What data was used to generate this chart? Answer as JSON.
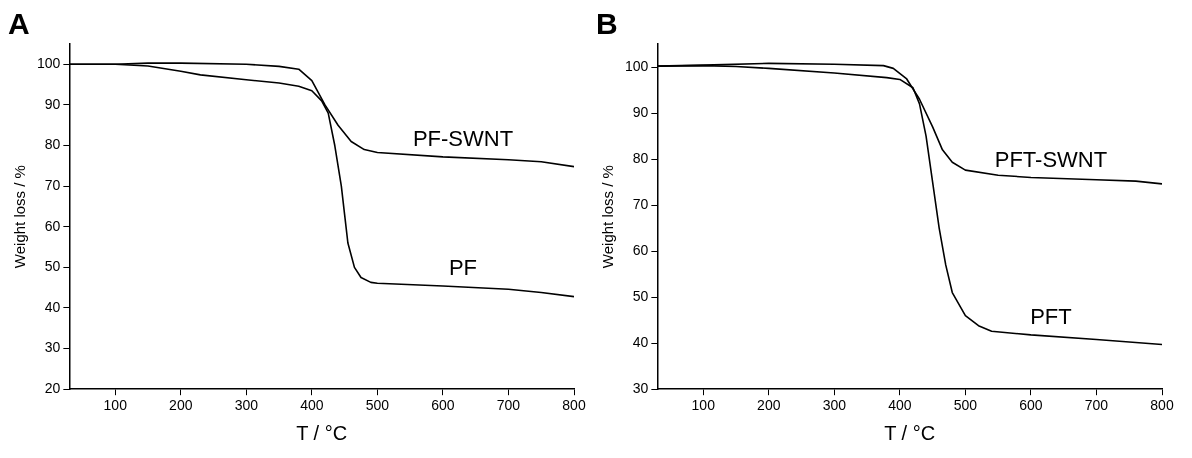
{
  "chart_data": [
    {
      "type": "line",
      "title": "A",
      "xlabel": "T / °C",
      "ylabel": "Weight loss / %",
      "xlim": [
        30,
        800
      ],
      "ylim": [
        20,
        105
      ],
      "xticks": [
        100,
        200,
        300,
        400,
        500,
        600,
        700,
        800
      ],
      "yticks": [
        20,
        30,
        40,
        50,
        60,
        70,
        80,
        90,
        100
      ],
      "grid": false,
      "legend": false,
      "marker": "none",
      "line_style": "solid",
      "series": [
        {
          "name": "PF-SWNT",
          "color": "#000000",
          "x": [
            30,
            100,
            150,
            200,
            300,
            350,
            380,
            400,
            420,
            440,
            460,
            480,
            500,
            600,
            700,
            750,
            800
          ],
          "values": [
            100,
            100,
            100.3,
            100.3,
            100,
            99.5,
            98.8,
            96,
            90,
            85,
            81,
            79,
            78.3,
            77.2,
            76.5,
            76,
            74.8
          ]
        },
        {
          "name": "PF",
          "color": "#000000",
          "x": [
            30,
            100,
            150,
            200,
            230,
            300,
            350,
            380,
            400,
            415,
            425,
            435,
            445,
            450,
            455,
            465,
            475,
            490,
            500,
            600,
            700,
            750,
            800
          ],
          "values": [
            100,
            100,
            99.6,
            98.3,
            97.4,
            96.2,
            95.4,
            94.6,
            93.5,
            91,
            88,
            80,
            70,
            63,
            56,
            50,
            47.5,
            46.3,
            46.1,
            45.4,
            44.6,
            43.8,
            42.8
          ]
        }
      ]
    },
    {
      "type": "line",
      "title": "B",
      "xlabel": "T / °C",
      "ylabel": "Weight loss / %",
      "xlim": [
        30,
        800
      ],
      "ylim": [
        30,
        105
      ],
      "xticks": [
        100,
        200,
        300,
        400,
        500,
        600,
        700,
        800
      ],
      "yticks": [
        30,
        40,
        50,
        60,
        70,
        80,
        90,
        100
      ],
      "grid": false,
      "legend": false,
      "marker": "none",
      "line_style": "solid",
      "series": [
        {
          "name": "PFT-SWNT",
          "color": "#000000",
          "x": [
            30,
            100,
            200,
            300,
            375,
            390,
            410,
            430,
            450,
            465,
            480,
            500,
            550,
            600,
            700,
            760,
            800
          ],
          "values": [
            100.2,
            100.4,
            100.8,
            100.6,
            100.3,
            99.7,
            97.5,
            93,
            87,
            82,
            79.3,
            77.6,
            76.5,
            76,
            75.5,
            75.2,
            74.6
          ]
        },
        {
          "name": "PFT",
          "color": "#000000",
          "x": [
            30,
            100,
            150,
            200,
            300,
            380,
            400,
            420,
            430,
            440,
            450,
            460,
            470,
            480,
            500,
            520,
            540,
            600,
            700,
            800
          ],
          "values": [
            100.2,
            100.3,
            100.1,
            99.7,
            98.7,
            97.7,
            97.3,
            95.5,
            92,
            85,
            75,
            65,
            57,
            51,
            46,
            43.8,
            42.6,
            41.8,
            40.8,
            39.7
          ]
        }
      ]
    }
  ]
}
